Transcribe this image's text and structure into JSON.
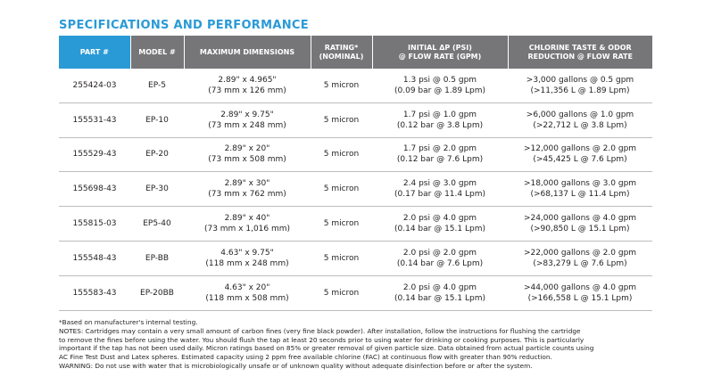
{
  "title": "SPECIFICATIONS AND PERFORMANCE",
  "columns": [
    [
      "PART #"
    ],
    [
      "MODEL #"
    ],
    [
      "MAXIMUM DIMENSIONS"
    ],
    [
      "RATING*",
      "(NOMINAL)"
    ],
    [
      "INITIAL ΔP (PSI)",
      "@ FLOW RATE (GPM)"
    ],
    [
      "CHLORINE TASTE & ODOR",
      "REDUCTION @ FLOW RATE"
    ]
  ],
  "rows": [
    {
      "part": "255424-03",
      "model": "EP-5",
      "dims": [
        "2.89\" x 4.965\"",
        "(73 mm x 126 mm)"
      ],
      "rating": "5 micron",
      "pressure": [
        "1.3 psi @ 0.5 gpm",
        "(0.09 bar @ 1.89 Lpm)"
      ],
      "chlorine": [
        ">3,000 gallons @ 0.5 gpm",
        "(>11,356 L @ 1.89 Lpm)"
      ]
    },
    {
      "part": "155531-43",
      "model": "EP-10",
      "dims": [
        "2.89\" x 9.75\"",
        "(73 mm x 248 mm)"
      ],
      "rating": "5 micron",
      "pressure": [
        "1.7 psi @ 1.0 gpm",
        "(0.12 bar @ 3.8 Lpm)"
      ],
      "chlorine": [
        ">6,000 gallons @ 1.0 gpm",
        "(>22,712 L @ 3.8 Lpm)"
      ]
    },
    {
      "part": "155529-43",
      "model": "EP-20",
      "dims": [
        "2.89\" x 20\"",
        "(73 mm x 508 mm)"
      ],
      "rating": "5 micron",
      "pressure": [
        "1.7 psi @ 2.0 gpm",
        "(0.12 bar @ 7.6 Lpm)"
      ],
      "chlorine": [
        ">12,000 gallons @ 2.0 gpm",
        "(>45,425 L @ 7.6 Lpm)"
      ]
    },
    {
      "part": "155698-43",
      "model": "EP-30",
      "dims": [
        "2.89\" x 30\"",
        "(73 mm x 762 mm)"
      ],
      "rating": "5 micron",
      "pressure": [
        "2.4 psi @ 3.0 gpm",
        "(0.17 bar @ 11.4 Lpm)"
      ],
      "chlorine": [
        ">18,000 gallons @ 3.0 gpm",
        "(>68,137 L @ 11.4 Lpm)"
      ]
    },
    {
      "part": "155815-03",
      "model": "EP5-40",
      "dims": [
        "2.89\" x 40\"",
        "(73 mm x 1,016 mm)"
      ],
      "rating": "5 micron",
      "pressure": [
        "2.0 psi @ 4.0 gpm",
        "(0.14 bar @ 15.1 Lpm)"
      ],
      "chlorine": [
        ">24,000 gallons @ 4.0 gpm",
        "(>90,850 L @ 15.1 Lpm)"
      ]
    },
    {
      "part": "155548-43",
      "model": "EP-BB",
      "dims": [
        "4.63\" x 9.75\"",
        "(118 mm x 248 mm)"
      ],
      "rating": "5 micron",
      "pressure": [
        "2.0 psi @ 2.0 gpm",
        "(0.14 bar @ 7.6 Lpm)"
      ],
      "chlorine": [
        ">22,000 gallons @ 2.0 gpm",
        "(>83,279 L @ 7.6 Lpm)"
      ]
    },
    {
      "part": "155583-43",
      "model": "EP-20BB",
      "dims": [
        "4.63\" x 20\"",
        "(118 mm x 508 mm)"
      ],
      "rating": "5 micron",
      "pressure": [
        "2.0 psi @ 4.0 gpm",
        "(0.14 bar @ 15.1 Lpm)"
      ],
      "chlorine": [
        ">44,000 gallons @ 4.0 gpm",
        "(>166,558 L @ 15.1 Lpm)"
      ]
    }
  ],
  "notes": [
    "*Based on manufacturer's internal testing.",
    "NOTES: Cartridges may contain a very small amount of carbon fines (very fine black powder). After installation, follow the instructions for flushing the cartridge",
    "to remove the fines before using the water. You should flush the tap at least 20 seconds prior to using water for drinking or cooking purposes. This is particularly",
    "important if the tap has not been used daily. Micron ratings based on 85% or greater removal of given particle size. Data obtained from actual particle counts using",
    "AC Fine Test Dust and Latex spheres. Estimated capacity using 2 ppm free available chlorine (FAC) at continuous flow with greater than 90% reduction.",
    "WARNING: Do not use with water that is microbiologically unsafe or of unknown quality without adequate disinfection before or after the system."
  ],
  "colors": {
    "accent": "#2a9ad6",
    "header_gray": "#767678",
    "rule": "#bdbdbd",
    "text": "#231f20"
  }
}
